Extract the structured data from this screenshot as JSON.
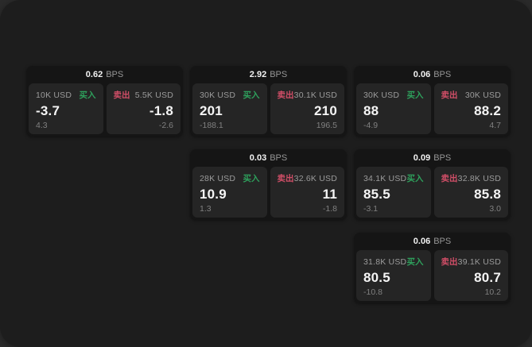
{
  "app": {
    "background_outer": "#2b2b2b",
    "background_window": "#1d1d1d",
    "card_background": "#151515",
    "panel_background": "#252525",
    "accent_buy": "#2ea05c",
    "accent_sell": "#d04e67"
  },
  "labels": {
    "buy": "买入",
    "sell": "卖出",
    "bps_unit": "BPS"
  },
  "cards": [
    {
      "col": 1,
      "row": 1,
      "bps": "0.62",
      "buy": {
        "size": "10K USD",
        "value": "-3.7",
        "change": "4.3"
      },
      "sell": {
        "size": "5.5K USD",
        "value": "-1.8",
        "change": "-2.6"
      }
    },
    {
      "col": 2,
      "row": 1,
      "bps": "2.92",
      "buy": {
        "size": "30K USD",
        "value": "201",
        "change": "-188.1"
      },
      "sell": {
        "size": "30.1K USD",
        "value": "210",
        "change": "196.5"
      }
    },
    {
      "col": 3,
      "row": 1,
      "bps": "0.06",
      "buy": {
        "size": "30K USD",
        "value": "88",
        "change": "-4.9"
      },
      "sell": {
        "size": "30K USD",
        "value": "88.2",
        "change": "4.7"
      }
    },
    {
      "col": 2,
      "row": 2,
      "bps": "0.03",
      "buy": {
        "size": "28K USD",
        "value": "10.9",
        "change": "1.3"
      },
      "sell": {
        "size": "32.6K USD",
        "value": "11",
        "change": "-1.8"
      }
    },
    {
      "col": 3,
      "row": 2,
      "bps": "0.09",
      "buy": {
        "size": "34.1K USD",
        "value": "85.5",
        "change": "-3.1"
      },
      "sell": {
        "size": "32.8K USD",
        "value": "85.8",
        "change": "3.0"
      }
    },
    {
      "col": 3,
      "row": 3,
      "bps": "0.06",
      "buy": {
        "size": "31.8K USD",
        "value": "80.5",
        "change": "-10.8"
      },
      "sell": {
        "size": "39.1K USD",
        "value": "80.7",
        "change": "10.2"
      }
    }
  ]
}
